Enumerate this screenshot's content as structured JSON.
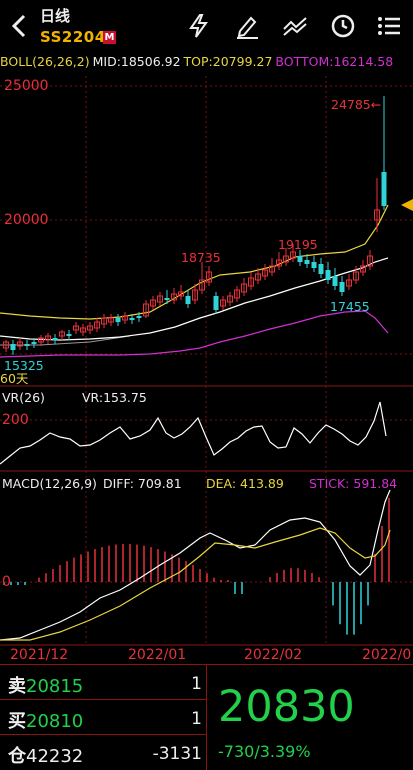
{
  "header": {
    "title": "日线",
    "symbol": "SS2204",
    "badge": "M",
    "icons": [
      "back-arrow-icon",
      "lightning-icon",
      "pencil-icon",
      "trend-lines-icon",
      "clock-icon",
      "menu-list-icon"
    ]
  },
  "boll": {
    "label": "BOLL(26,26,2)",
    "mid": "MID:18506.92",
    "top": "TOP:20799.27",
    "bottom": "BOTTOM:16214.58"
  },
  "price_chart": {
    "y_labels": [
      "25000",
      "20000"
    ],
    "annotations": {
      "high_arrow": "24785←",
      "peak1": "18735",
      "peak2": "19195",
      "low1": "17455",
      "low0": "15325"
    },
    "ma_label": "60天"
  },
  "vr": {
    "label": "VR(26)",
    "value": "VR:153.75",
    "y_label": "200"
  },
  "macd": {
    "label": "MACD(12,26,9)",
    "diff": "DIFF: 709.81",
    "dea": "DEA: 413.89",
    "stick": "STICK: 591.84",
    "y_label": "0"
  },
  "x_axis": [
    "2021/12",
    "2022/01",
    "2022/02",
    "2022/0"
  ],
  "colors": {
    "up": "#e8313a",
    "down": "#2fd3d8",
    "text_green": "#22d04a",
    "boll_top": "#e8d640",
    "boll_mid": "#ffffff",
    "boll_bottom": "#d030d0",
    "symbol": "#f0b400"
  },
  "quote": {
    "sell_label": "卖",
    "sell_price": "20815",
    "sell_qty": "1",
    "buy_label": "买",
    "buy_price": "20810",
    "buy_qty": "1",
    "pos_label": "仓",
    "pos_value": "42232",
    "pos_change": "-3131",
    "last": "20830",
    "change": "-730/3.39%"
  }
}
